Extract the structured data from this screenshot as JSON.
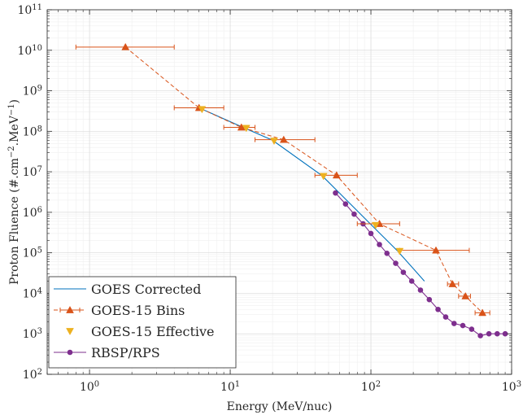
{
  "chart_data": {
    "type": "line",
    "xscale": "log",
    "yscale": "log",
    "xlim": [
      0.5,
      1000
    ],
    "ylim": [
      100,
      100000000000
    ],
    "xlabel": "Energy (MeV/nuc)",
    "ylabel": "Proton Fluence (#.cm^-2.MeV^-1)",
    "ylabel_parts": {
      "pre": "Proton Fluence (#.cm",
      "sup1": "−2",
      "mid": ".MeV",
      "sup2": "−1",
      "post": ")"
    },
    "x_ticks": [
      {
        "value": 1,
        "base": "10",
        "exp": "0"
      },
      {
        "value": 10,
        "base": "10",
        "exp": "1"
      },
      {
        "value": 100,
        "base": "10",
        "exp": "2"
      },
      {
        "value": 1000,
        "base": "10",
        "exp": "3"
      }
    ],
    "y_ticks": [
      {
        "value": 100,
        "base": "10",
        "exp": "2"
      },
      {
        "value": 1000,
        "base": "10",
        "exp": "3"
      },
      {
        "value": 10000,
        "base": "10",
        "exp": "4"
      },
      {
        "value": 100000,
        "base": "10",
        "exp": "5"
      },
      {
        "value": 1000000,
        "base": "10",
        "exp": "6"
      },
      {
        "value": 10000000,
        "base": "10",
        "exp": "7"
      },
      {
        "value": 100000000,
        "base": "10",
        "exp": "8"
      },
      {
        "value": 1000000000,
        "base": "10",
        "exp": "9"
      },
      {
        "value": 10000000000,
        "base": "10",
        "exp": "10"
      },
      {
        "value": 100000000000,
        "base": "10",
        "exp": "11"
      }
    ],
    "grid": true,
    "legend_position": "bottom-left",
    "series": [
      {
        "name": "GOES Corrected",
        "kind": "line",
        "color": "#0072BD",
        "x": [
          6,
          12,
          20,
          45,
          100,
          155,
          240
        ],
        "y": [
          380000000,
          130000000,
          60000000,
          8000000,
          500000,
          110000,
          20000
        ]
      },
      {
        "name": "GOES-15 Bins",
        "kind": "errorbar",
        "color": "#D95319",
        "marker": "triangle-up",
        "x": [
          1.8,
          6,
          12,
          24,
          57,
          115,
          290,
          380,
          470,
          620
        ],
        "y": [
          12000000000,
          380000000,
          125000000,
          62000000,
          8200000,
          520000,
          115000,
          17000,
          8500,
          3300
        ],
        "xerr_low": [
          0.8,
          4,
          9,
          15,
          40,
          80,
          160,
          350,
          420,
          550
        ],
        "xerr_high": [
          4,
          9,
          15,
          40,
          80,
          160,
          500,
          420,
          510,
          700
        ]
      },
      {
        "name": "GOES-15 Effective",
        "kind": "scatter",
        "color": "#EDB120",
        "marker": "triangle-down",
        "x": [
          6.3,
          13,
          20.5,
          46,
          108,
          160
        ],
        "y": [
          350000000,
          120000000,
          58000000,
          7800000,
          480000,
          110000
        ]
      },
      {
        "name": "RBSP/RPS",
        "kind": "line-marker",
        "color": "#7E2F8E",
        "marker": "circle",
        "x": [
          56,
          66,
          76,
          88,
          100,
          115,
          130,
          150,
          170,
          195,
          225,
          260,
          300,
          340,
          390,
          450,
          520,
          600,
          690,
          790,
          900
        ],
        "y": [
          3000000,
          1600000,
          900000,
          520000,
          300000,
          160000,
          97000,
          55000,
          33000,
          20000,
          12000,
          7000,
          4000,
          2600,
          1800,
          1600,
          1300,
          900,
          1000,
          1000,
          1000
        ]
      }
    ]
  }
}
